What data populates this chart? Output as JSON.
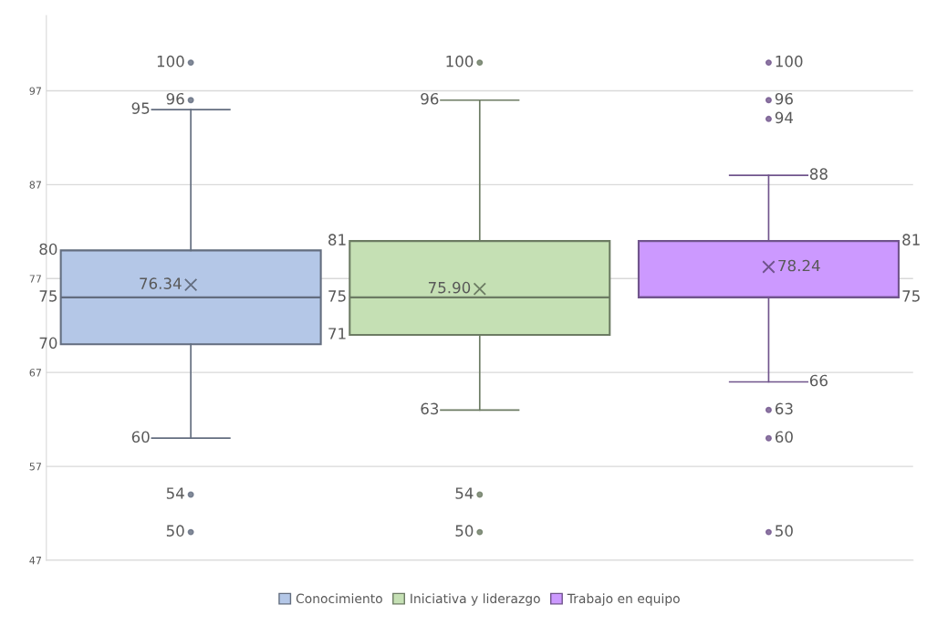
{
  "chart_data": {
    "type": "box",
    "categories": [
      null
    ],
    "series": [
      {
        "name": "Conocimiento",
        "color": "#b4c7e7",
        "boxes": [
          {
            "low": 60,
            "q1": 70,
            "median": 75,
            "q3": 80,
            "high": 95,
            "mean": 76.34,
            "outliers": [
              100,
              96,
              54,
              50
            ]
          }
        ]
      },
      {
        "name": "Iniciativa y liderazgo",
        "color": "#c5e0b4",
        "boxes": [
          {
            "low": 63,
            "q1": 71,
            "median": 75,
            "q3": 81,
            "high": 96,
            "mean": 75.9,
            "outliers": [
              100,
              54,
              50
            ]
          }
        ]
      },
      {
        "name": "Trabajo en equipo",
        "color": "#cc99ff",
        "boxes": [
          {
            "low": 66,
            "q1": 75,
            "median": 75,
            "q3": 81,
            "high": 88,
            "mean": 78.24,
            "outliers": [
              100,
              96,
              94,
              63,
              60,
              50
            ]
          }
        ]
      }
    ],
    "annotations": [
      "60",
      "70",
      "75",
      "80",
      "95",
      "76.34",
      "100",
      "96",
      "54",
      "50",
      "63",
      "71",
      "75",
      "81",
      "96",
      "75.90",
      "100",
      "54",
      "50",
      "66",
      "75",
      "81",
      "88",
      "78.24",
      "100",
      "96",
      "94",
      "63",
      "60",
      "50"
    ],
    "ylim": [
      47,
      105
    ],
    "yticks": [
      47,
      57,
      67,
      77,
      87,
      97
    ],
    "grid": "y",
    "legend": "bottom"
  }
}
